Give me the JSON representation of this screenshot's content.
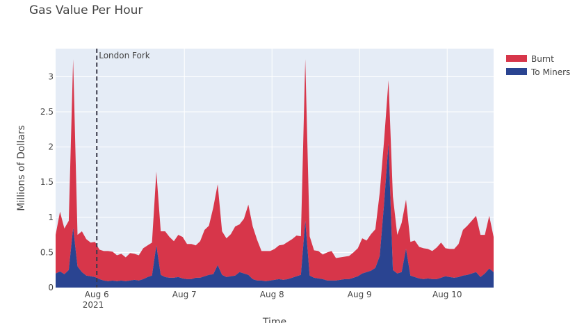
{
  "chart_data": {
    "type": "area",
    "title": "Gas Value Per Hour",
    "xlabel": "Time",
    "ylabel": "Millions of Dollars",
    "x_tick_labels": [
      "Aug 6",
      "Aug 7",
      "Aug 8",
      "Aug 9",
      "Aug 10"
    ],
    "x_year_label": "2021",
    "y_tick_labels": [
      "0",
      "0.5",
      "1",
      "1.5",
      "2",
      "2.5",
      "3"
    ],
    "ylim": [
      0,
      3.4
    ],
    "stacked": true,
    "grid": true,
    "legend_position": "top-right",
    "annotation": {
      "label": "London Fork",
      "x": 0.47,
      "style": "dashed"
    },
    "series": [
      {
        "name": "To Miners",
        "color": "#2a4491",
        "x": [
          0,
          0.05,
          0.1,
          0.15,
          0.2,
          0.25,
          0.3,
          0.35,
          0.4,
          0.45,
          0.5,
          0.55,
          0.6,
          0.65,
          0.7,
          0.75,
          0.8,
          0.85,
          0.9,
          0.95,
          1.0,
          1.05,
          1.1,
          1.15,
          1.2,
          1.25,
          1.3,
          1.35,
          1.4,
          1.45,
          1.5,
          1.55,
          1.6,
          1.65,
          1.7,
          1.75,
          1.8,
          1.85,
          1.9,
          1.95,
          2.0,
          2.05,
          2.1,
          2.15,
          2.2,
          2.25,
          2.3,
          2.35,
          2.4,
          2.45,
          2.5,
          2.55,
          2.6,
          2.65,
          2.7,
          2.75,
          2.8,
          2.85,
          2.9,
          2.95,
          3.0,
          3.05,
          3.1,
          3.15,
          3.2,
          3.25,
          3.3,
          3.35,
          3.4,
          3.45,
          3.5,
          3.55,
          3.6,
          3.65,
          3.7,
          3.75,
          3.8,
          3.85,
          3.9,
          3.95,
          4.0,
          4.05,
          4.1,
          4.15,
          4.2,
          4.25,
          4.3,
          4.35,
          4.4,
          4.45,
          4.5,
          4.55,
          4.6,
          4.65,
          4.7,
          4.75,
          4.8,
          4.85,
          4.9,
          4.95,
          5.0
        ],
        "values": [
          0.2,
          0.23,
          0.19,
          0.25,
          0.85,
          0.3,
          0.22,
          0.17,
          0.16,
          0.15,
          0.12,
          0.1,
          0.09,
          0.1,
          0.09,
          0.1,
          0.09,
          0.1,
          0.11,
          0.1,
          0.12,
          0.15,
          0.17,
          0.6,
          0.18,
          0.15,
          0.14,
          0.14,
          0.15,
          0.13,
          0.12,
          0.12,
          0.14,
          0.14,
          0.16,
          0.18,
          0.19,
          0.32,
          0.18,
          0.15,
          0.16,
          0.17,
          0.22,
          0.2,
          0.18,
          0.12,
          0.1,
          0.1,
          0.09,
          0.1,
          0.11,
          0.12,
          0.11,
          0.12,
          0.14,
          0.16,
          0.18,
          0.95,
          0.17,
          0.14,
          0.13,
          0.12,
          0.1,
          0.1,
          0.1,
          0.11,
          0.12,
          0.12,
          0.14,
          0.16,
          0.2,
          0.22,
          0.24,
          0.28,
          0.45,
          1.2,
          2.05,
          0.25,
          0.2,
          0.22,
          0.55,
          0.17,
          0.15,
          0.13,
          0.12,
          0.13,
          0.12,
          0.12,
          0.14,
          0.16,
          0.15,
          0.14,
          0.15,
          0.17,
          0.18,
          0.2,
          0.22,
          0.15,
          0.2,
          0.27,
          0.22
        ]
      },
      {
        "name": "Burnt",
        "color": "#d7364a",
        "x": [
          0,
          0.05,
          0.1,
          0.15,
          0.2,
          0.25,
          0.3,
          0.35,
          0.4,
          0.45,
          0.5,
          0.55,
          0.6,
          0.65,
          0.7,
          0.75,
          0.8,
          0.85,
          0.9,
          0.95,
          1.0,
          1.05,
          1.1,
          1.15,
          1.2,
          1.25,
          1.3,
          1.35,
          1.4,
          1.45,
          1.5,
          1.55,
          1.6,
          1.65,
          1.7,
          1.75,
          1.8,
          1.85,
          1.9,
          1.95,
          2.0,
          2.05,
          2.1,
          2.15,
          2.2,
          2.25,
          2.3,
          2.35,
          2.4,
          2.45,
          2.5,
          2.55,
          2.6,
          2.65,
          2.7,
          2.75,
          2.8,
          2.85,
          2.9,
          2.95,
          3.0,
          3.05,
          3.1,
          3.15,
          3.2,
          3.25,
          3.3,
          3.35,
          3.4,
          3.45,
          3.5,
          3.55,
          3.6,
          3.65,
          3.7,
          3.75,
          3.8,
          3.85,
          3.9,
          3.95,
          4.0,
          4.05,
          4.1,
          4.15,
          4.2,
          4.25,
          4.3,
          4.35,
          4.4,
          4.45,
          4.5,
          4.55,
          4.6,
          4.65,
          4.7,
          4.75,
          4.8,
          4.85,
          4.9,
          4.95,
          5.0
        ],
        "values": [
          0.55,
          0.85,
          0.65,
          0.7,
          2.4,
          0.45,
          0.58,
          0.52,
          0.48,
          0.5,
          0.42,
          0.42,
          0.43,
          0.41,
          0.37,
          0.38,
          0.34,
          0.39,
          0.37,
          0.36,
          0.44,
          0.45,
          0.47,
          1.05,
          0.62,
          0.65,
          0.58,
          0.52,
          0.6,
          0.59,
          0.5,
          0.5,
          0.46,
          0.52,
          0.66,
          0.7,
          0.95,
          1.15,
          0.62,
          0.55,
          0.6,
          0.7,
          0.68,
          0.78,
          1.0,
          0.75,
          0.58,
          0.42,
          0.43,
          0.42,
          0.44,
          0.48,
          0.5,
          0.53,
          0.55,
          0.58,
          0.55,
          2.3,
          0.56,
          0.39,
          0.39,
          0.35,
          0.4,
          0.42,
          0.32,
          0.32,
          0.32,
          0.33,
          0.36,
          0.4,
          0.5,
          0.45,
          0.52,
          0.55,
          0.9,
          0.9,
          0.9,
          1.05,
          0.55,
          0.7,
          0.7,
          0.48,
          0.52,
          0.45,
          0.44,
          0.42,
          0.4,
          0.45,
          0.5,
          0.4,
          0.4,
          0.41,
          0.47,
          0.65,
          0.7,
          0.75,
          0.8,
          0.6,
          0.55,
          0.75,
          0.5
        ]
      }
    ]
  }
}
